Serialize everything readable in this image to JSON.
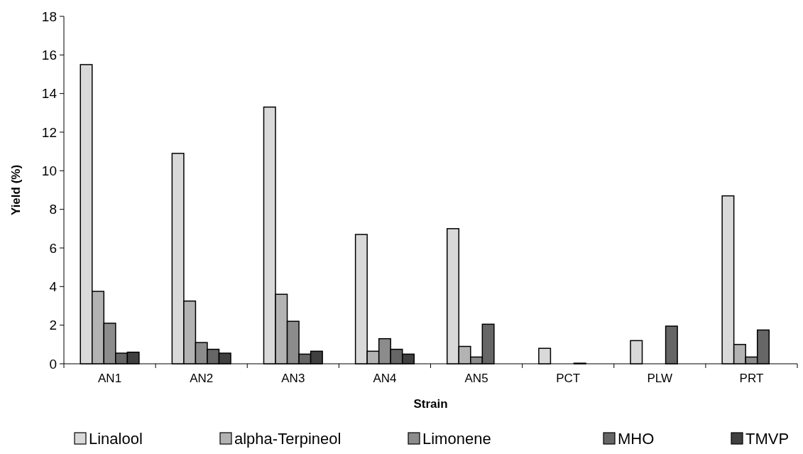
{
  "chart_data": {
    "type": "bar",
    "xlabel": "Strain",
    "ylabel": "Yield (%)",
    "categories": [
      "AN1",
      "AN2",
      "AN3",
      "AN4",
      "AN5",
      "PCT",
      "PLW",
      "PRT"
    ],
    "series": [
      {
        "name": "Linalool",
        "color": "#d9d9d9",
        "values": [
          15.5,
          10.9,
          13.3,
          6.7,
          7.0,
          0.8,
          1.2,
          8.7
        ]
      },
      {
        "name": "alpha-Terpineol",
        "color": "#b3b3b3",
        "values": [
          3.75,
          3.25,
          3.6,
          0.65,
          0.9,
          0,
          0,
          1.0
        ]
      },
      {
        "name": "Limonene",
        "color": "#8c8c8c",
        "values": [
          2.1,
          1.1,
          2.2,
          1.3,
          0.35,
          0,
          0,
          0.35
        ]
      },
      {
        "name": "MHO",
        "color": "#666666",
        "values": [
          0.55,
          0.75,
          0.5,
          0.75,
          2.05,
          0.03,
          1.95,
          1.75
        ]
      },
      {
        "name": "TMVP",
        "color": "#404040",
        "values": [
          0.6,
          0.55,
          0.65,
          0.5,
          0,
          0,
          0,
          0
        ]
      }
    ],
    "ylim": [
      0,
      18
    ],
    "yticks": [
      0,
      2,
      4,
      6,
      8,
      10,
      12,
      14,
      16,
      18
    ],
    "grid": false,
    "legend": "bottom"
  }
}
